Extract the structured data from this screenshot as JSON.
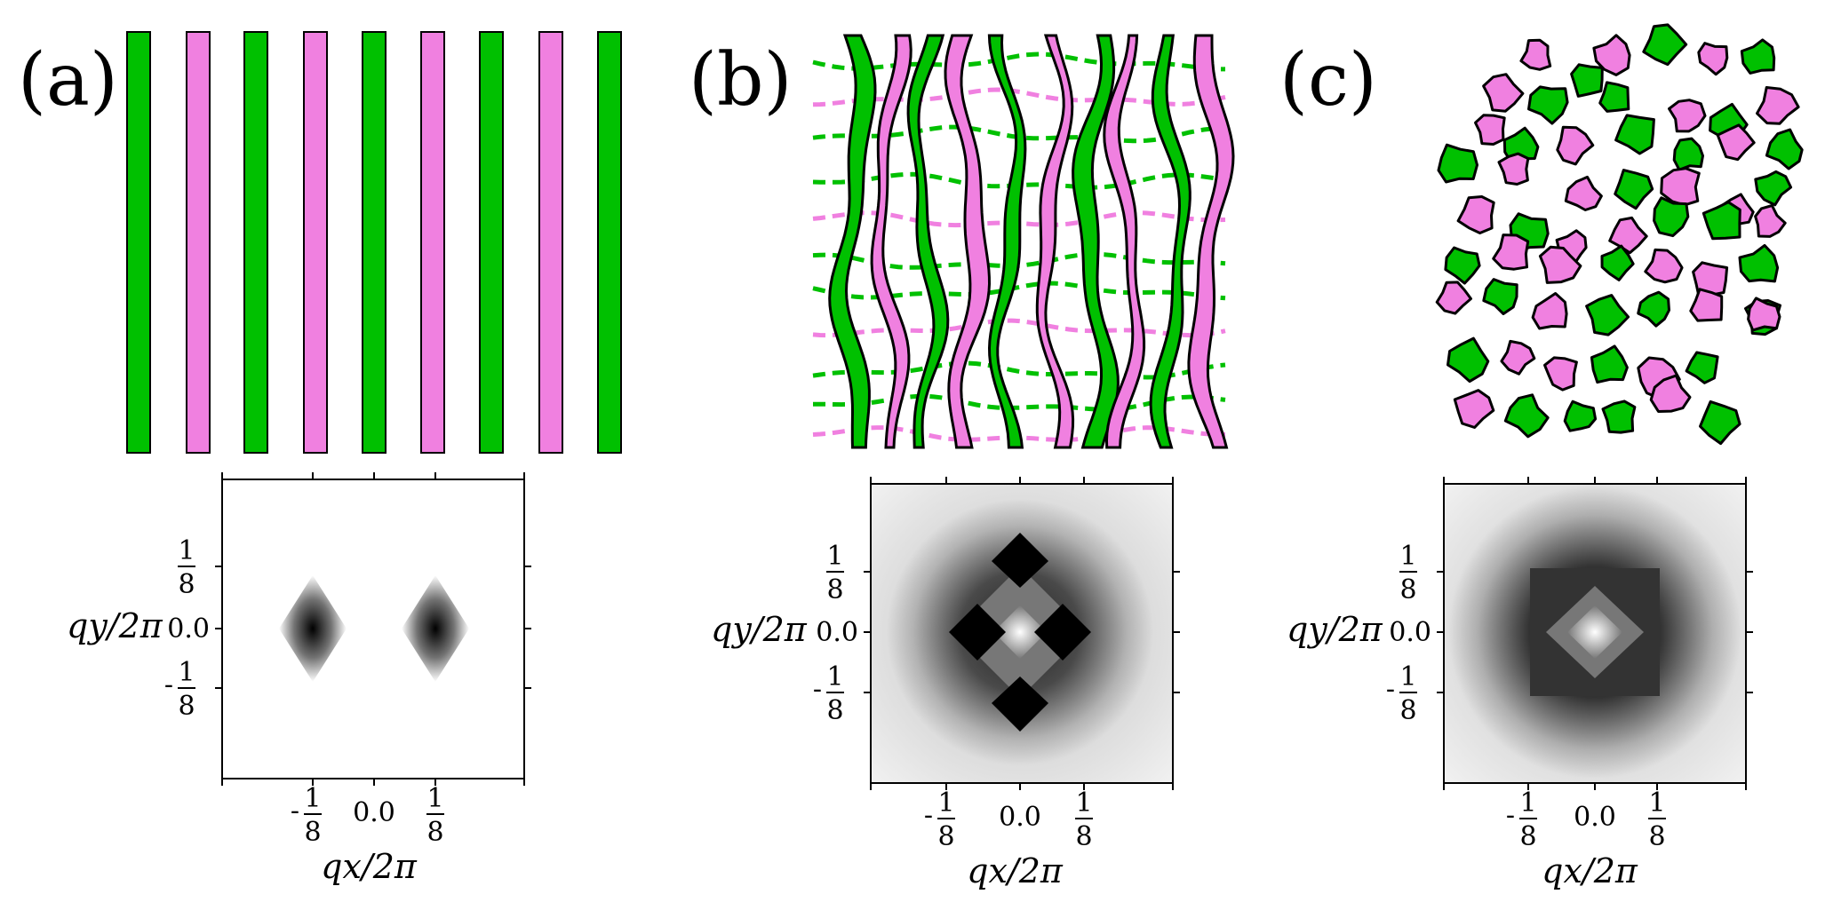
{
  "panels": [
    {
      "label": "(a)",
      "pattern": "stripes"
    },
    {
      "label": "(b)",
      "pattern": "wavy-stripes"
    },
    {
      "label": "(c)",
      "pattern": "blobs"
    }
  ],
  "colors": {
    "green": "#00c000",
    "pink": "#f080e0",
    "outline": "#000000"
  },
  "axes": {
    "xlabel": "qx/2π",
    "ylabel": "qy/2π",
    "tick_neg": "-1/8",
    "tick_zero": "0.0",
    "tick_pos": "1/8"
  }
}
